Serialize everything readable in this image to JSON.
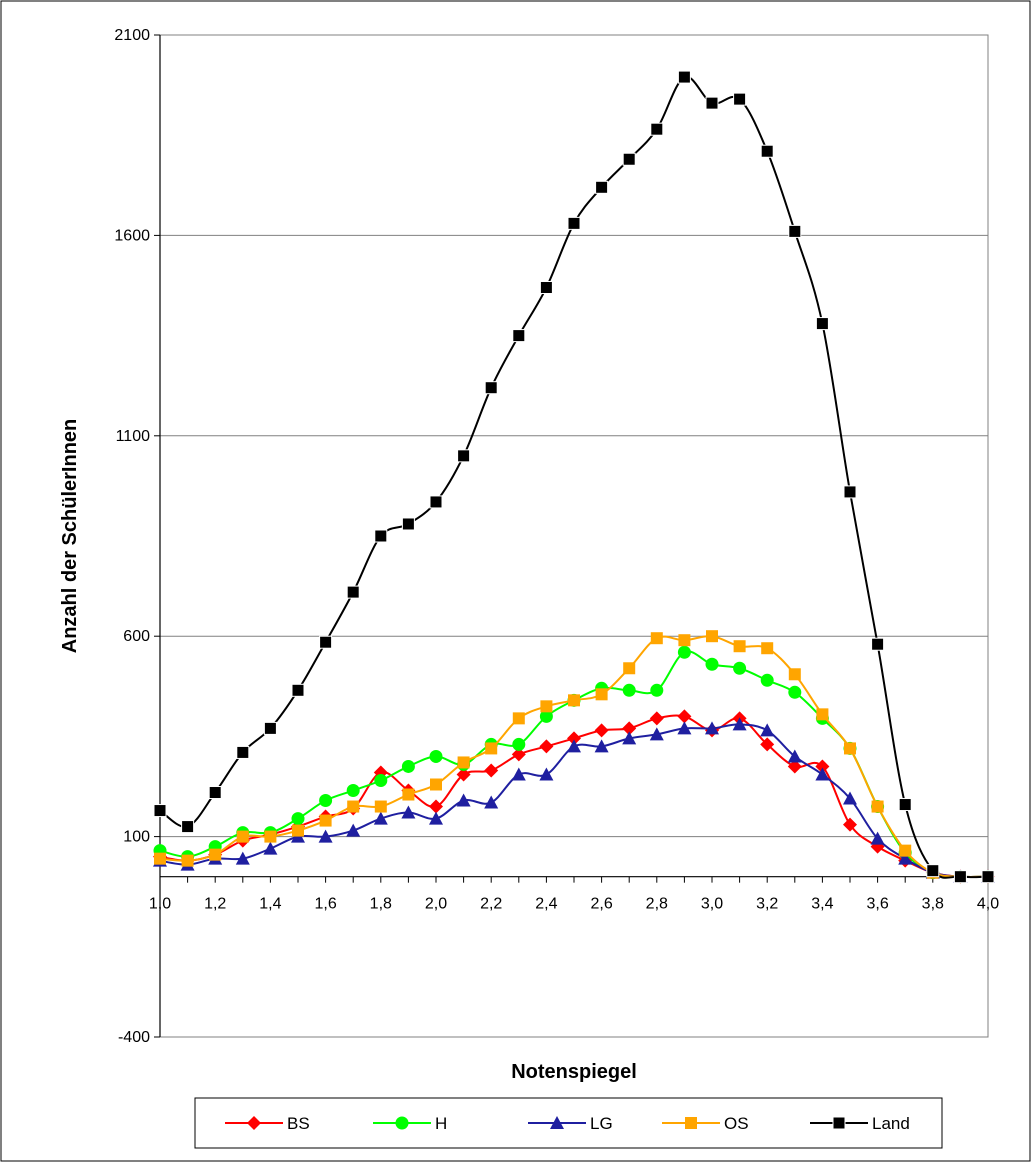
{
  "chart_data": {
    "type": "line",
    "title": "",
    "xlabel": "Notenspiegel",
    "ylabel": "Anzahl der SchülerInnen",
    "ylim": [
      -400,
      2100
    ],
    "xlim": [
      1.0,
      4.0
    ],
    "yticks": [
      "2100",
      "1600",
      "1100",
      "600",
      "100",
      "-400"
    ],
    "ytick_values": [
      2100,
      1600,
      1100,
      600,
      100,
      -400
    ],
    "xticks": [
      "1,0",
      "1,2",
      "1,4",
      "1,6",
      "1,8",
      "2,0",
      "2,2",
      "2,4",
      "2,6",
      "2,8",
      "3,0",
      "3,2",
      "3,4",
      "3,6",
      "3,8",
      "4,0"
    ],
    "xtick_values": [
      1.0,
      1.2,
      1.4,
      1.6,
      1.8,
      2.0,
      2.2,
      2.4,
      2.6,
      2.8,
      3.0,
      3.2,
      3.4,
      3.6,
      3.8,
      4.0
    ],
    "grid": "horizontal",
    "legend_position": "bottom",
    "x": [
      1.0,
      1.1,
      1.2,
      1.3,
      1.4,
      1.5,
      1.6,
      1.7,
      1.8,
      1.9,
      2.0,
      2.1,
      2.2,
      2.3,
      2.4,
      2.5,
      2.6,
      2.7,
      2.8,
      2.9,
      3.0,
      3.1,
      3.2,
      3.3,
      3.4,
      3.5,
      3.6,
      3.7,
      3.8,
      3.9,
      4.0
    ],
    "series": [
      {
        "name": "BS",
        "color": "#ff0000",
        "marker": "diamond",
        "values": [
          50,
          40,
          55,
          90,
          105,
          125,
          150,
          170,
          260,
          215,
          175,
          255,
          265,
          305,
          325,
          345,
          365,
          370,
          395,
          400,
          365,
          395,
          330,
          275,
          275,
          130,
          75,
          40,
          10,
          0,
          0
        ]
      },
      {
        "name": "H",
        "color": "#00ff00",
        "marker": "circle",
        "values": [
          65,
          50,
          75,
          110,
          110,
          145,
          190,
          215,
          240,
          275,
          300,
          280,
          330,
          330,
          400,
          440,
          470,
          465,
          465,
          560,
          530,
          520,
          490,
          460,
          395,
          320,
          175,
          60,
          10,
          0,
          0
        ]
      },
      {
        "name": "LG",
        "color": "#1f1fa0",
        "marker": "triangle",
        "values": [
          40,
          30,
          45,
          45,
          70,
          100,
          100,
          115,
          145,
          160,
          145,
          190,
          185,
          255,
          255,
          325,
          325,
          345,
          355,
          370,
          370,
          380,
          365,
          300,
          255,
          195,
          95,
          45,
          10,
          0,
          0
        ]
      },
      {
        "name": "OS",
        "color": "#ffa500",
        "marker": "square",
        "values": [
          45,
          40,
          55,
          100,
          100,
          115,
          140,
          175,
          175,
          205,
          230,
          285,
          320,
          395,
          425,
          440,
          455,
          520,
          595,
          590,
          600,
          575,
          570,
          505,
          405,
          320,
          175,
          65,
          10,
          0,
          0
        ]
      },
      {
        "name": "Land",
        "color": "#000000",
        "marker": "square",
        "values": [
          165,
          125,
          210,
          310,
          370,
          465,
          585,
          710,
          850,
          880,
          935,
          1050,
          1220,
          1350,
          1470,
          1630,
          1720,
          1790,
          1865,
          1995,
          1930,
          1940,
          1810,
          1610,
          1380,
          960,
          580,
          180,
          15,
          0,
          0
        ]
      }
    ]
  }
}
